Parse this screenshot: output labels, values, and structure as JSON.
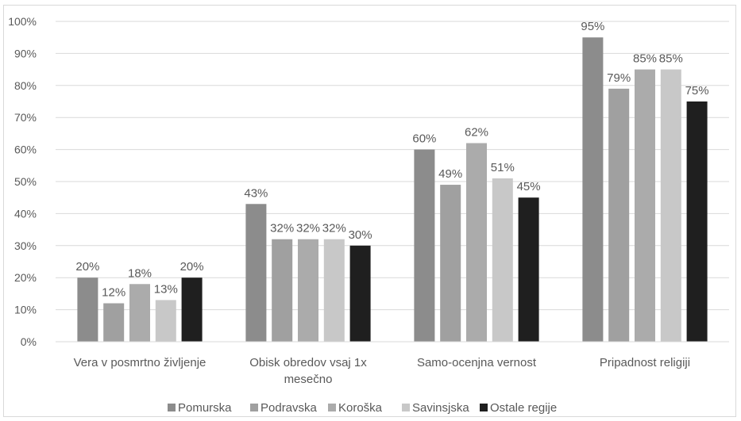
{
  "chart_data": {
    "type": "bar",
    "categories": [
      [
        "Vera v posmrtno življenje"
      ],
      [
        "Obisk obredov vsaj 1x",
        "mesečno"
      ],
      [
        "Samo-ocenjna vernost"
      ],
      [
        "Pripadnost religiji"
      ]
    ],
    "series": [
      {
        "name": "Pomurska",
        "values": [
          20,
          43,
          60,
          95
        ],
        "labels": [
          "20%",
          "43%",
          "60%",
          "95%"
        ],
        "color": "#8c8c8c"
      },
      {
        "name": "Podravska",
        "values": [
          12,
          32,
          49,
          79
        ],
        "labels": [
          "12%",
          "32%",
          "49%",
          "79%"
        ],
        "color": "#a0a0a0"
      },
      {
        "name": "Koroška",
        "values": [
          18,
          32,
          62,
          85
        ],
        "labels": [
          "18%",
          "32%",
          "62%",
          "85%"
        ],
        "color": "#ababab"
      },
      {
        "name": "Savinsjska",
        "values": [
          13,
          32,
          51,
          85
        ],
        "labels": [
          "13%",
          "32%",
          "51%",
          "85%"
        ],
        "color": "#c8c8c8"
      },
      {
        "name": "Ostale regije",
        "values": [
          20,
          30,
          45,
          75
        ],
        "labels": [
          "20%",
          "30%",
          "45%",
          "75%"
        ],
        "color": "#1f1f1f"
      }
    ],
    "ylim": [
      0,
      100
    ],
    "yticks": [
      "0%",
      "10%",
      "20%",
      "30%",
      "40%",
      "50%",
      "60%",
      "70%",
      "80%",
      "90%",
      "100%"
    ],
    "grid": true,
    "legend_position": "bottom"
  }
}
